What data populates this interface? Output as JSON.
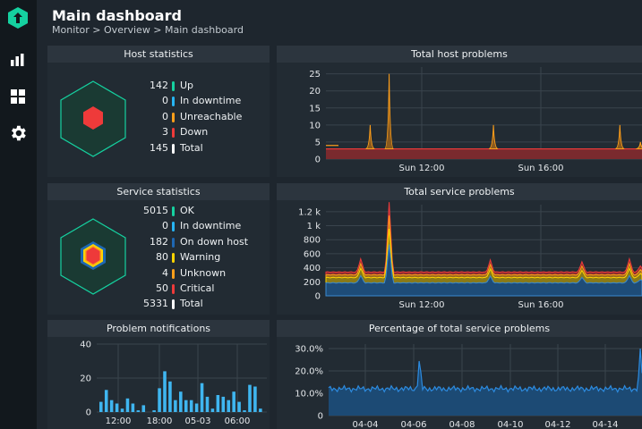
{
  "header": {
    "title": "Main dashboard",
    "breadcrumb": "Monitor > Overview > Main dashboard"
  },
  "sidebar": {
    "items": [
      {
        "icon": "checkmk-logo-icon"
      },
      {
        "icon": "bar-chart-icon"
      },
      {
        "icon": "dashboard-grid-icon"
      },
      {
        "icon": "gear-icon"
      }
    ]
  },
  "colors": {
    "ok": "#15d1a0",
    "downtime": "#27b5f3",
    "down_host": "#1e67b3",
    "warning": "#ffd400",
    "unknown": "#ff9f1a",
    "critical": "#ee3a3a",
    "total": "#ffffff"
  },
  "host_statistics": {
    "title": "Host statistics",
    "rows": [
      {
        "value": "142",
        "label": "Up",
        "color": "#15d1a0"
      },
      {
        "value": "0",
        "label": "In downtime",
        "color": "#27b5f3"
      },
      {
        "value": "0",
        "label": "Unreachable",
        "color": "#ff9f1a"
      },
      {
        "value": "3",
        "label": "Down",
        "color": "#ee3a3a"
      },
      {
        "value": "145",
        "label": "Total",
        "color": "#ffffff"
      }
    ]
  },
  "service_statistics": {
    "title": "Service statistics",
    "rows": [
      {
        "value": "5015",
        "label": "OK",
        "color": "#15d1a0"
      },
      {
        "value": "0",
        "label": "In downtime",
        "color": "#27b5f3"
      },
      {
        "value": "182",
        "label": "On down host",
        "color": "#1e67b3"
      },
      {
        "value": "80",
        "label": "Warning",
        "color": "#ffd400"
      },
      {
        "value": "4",
        "label": "Unknown",
        "color": "#ff9f1a"
      },
      {
        "value": "50",
        "label": "Critical",
        "color": "#ee3a3a"
      },
      {
        "value": "5331",
        "label": "Total",
        "color": "#ffffff"
      }
    ]
  },
  "chart_data": [
    {
      "id": "host_problems",
      "type": "area",
      "title": "Total host problems",
      "y_ticks": [
        "25",
        "20",
        "15",
        "10",
        "5",
        "0"
      ],
      "y_tick_values": [
        25,
        20,
        15,
        10,
        5,
        0
      ],
      "x_ticks": [
        "Sun 12:00",
        "Sun 16:00"
      ],
      "ylim": [
        0,
        27
      ],
      "grid": true,
      "baseline": 3,
      "series": [
        {
          "color": "#ee3a3a",
          "values": [
            3
          ]
        },
        {
          "color": "#ff9f1a",
          "values": [
            4
          ]
        }
      ],
      "spikes": [
        {
          "at": 0.14,
          "value": 10
        },
        {
          "at": 0.2,
          "value": 25
        },
        {
          "at": 0.53,
          "value": 10
        },
        {
          "at": 0.93,
          "value": 10
        },
        {
          "at": 0.995,
          "value": 5
        }
      ]
    },
    {
      "id": "service_problems",
      "type": "area",
      "title": "Total service problems",
      "y_ticks": [
        "1.2 k",
        "1 k",
        "800",
        "600",
        "400",
        "200",
        "0"
      ],
      "y_tick_values": [
        1200,
        1000,
        800,
        600,
        400,
        200,
        0
      ],
      "x_ticks": [
        "Sun 12:00",
        "Sun 16:00"
      ],
      "ylim": [
        0,
        1300
      ],
      "grid": true
    },
    {
      "id": "problem_notifications",
      "type": "bar",
      "title": "Problem notifications",
      "y_ticks": [
        "40",
        "20",
        "0"
      ],
      "y_tick_values": [
        40,
        20,
        0
      ],
      "x_ticks": [
        "12:00",
        "18:00",
        "05-03",
        "06:00"
      ],
      "ylim": [
        0,
        40
      ],
      "grid": true,
      "values": [
        6,
        13,
        7,
        5,
        2,
        8,
        5,
        1,
        4,
        0,
        1,
        14,
        24,
        18,
        7,
        12,
        7,
        7,
        5,
        17,
        9,
        2,
        10,
        9,
        7,
        12,
        6,
        1,
        16,
        15,
        2
      ]
    },
    {
      "id": "pct_service_problems",
      "type": "area",
      "title": "Percentage of total service problems",
      "y_ticks": [
        "30.0%",
        "20.0%",
        "10.0%",
        "0"
      ],
      "y_tick_values": [
        30,
        20,
        10,
        0
      ],
      "x_ticks": [
        "04-04",
        "04-06",
        "04-08",
        "04-10",
        "04-12",
        "04-14"
      ],
      "ylim": [
        0,
        32
      ],
      "grid": true,
      "base_value": 12,
      "spikes": [
        {
          "at": 0.29,
          "value": 26
        },
        {
          "at": 0.995,
          "value": 31
        }
      ]
    }
  ]
}
